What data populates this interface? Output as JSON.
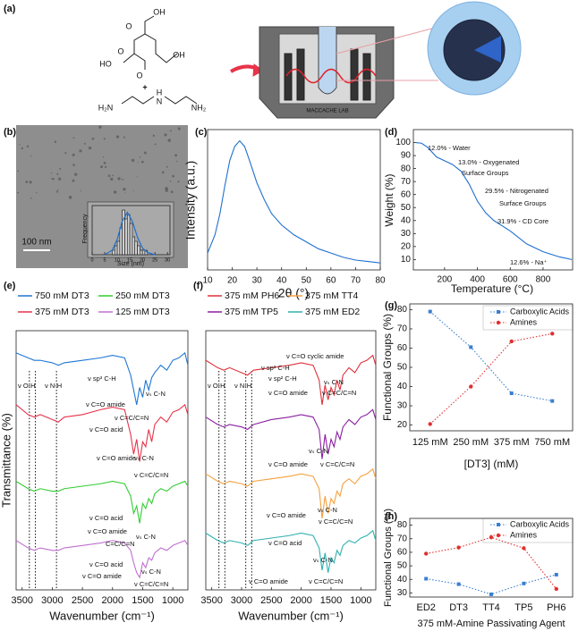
{
  "panel_labels": [
    "(a)",
    "(b)",
    "(c)",
    "(d)",
    "(e)",
    "(f)",
    "(g)",
    "(h)"
  ],
  "schematic": {
    "texts": [
      "HO",
      "O",
      "OH",
      "O",
      "OH",
      "O",
      "+",
      "H₂N",
      "N",
      "H",
      "NH₂",
      "MACCACHE LAB"
    ]
  },
  "chart_data": [
    {
      "type": "histogram",
      "scale_bar": "100 nm",
      "xlabel": "Size (nm)",
      "ylabel": "Frequency",
      "bins": [
        8,
        9,
        10,
        11,
        12,
        13,
        14,
        15,
        16,
        17,
        18,
        19,
        20,
        21,
        22
      ],
      "values": [
        1,
        2,
        3,
        6,
        10,
        8,
        9,
        7,
        4,
        3,
        2,
        1,
        1,
        1
      ],
      "color": "#cfcfcf",
      "fit": {
        "color": "#1f6fd0",
        "x": [
          5,
          8,
          10,
          12,
          14,
          16,
          18,
          20,
          22,
          25
        ],
        "values": [
          0,
          1,
          3.5,
          7.5,
          9.5,
          7.5,
          4,
          1.5,
          0.5,
          0
        ]
      },
      "xlim": [
        0,
        31
      ],
      "xticks": [
        0,
        5,
        10,
        15,
        20,
        25,
        30
      ],
      "ylim": [
        0,
        11
      ]
    },
    {
      "type": "line",
      "xlabel": "2θ (°)",
      "ylabel": "Intensity (a.u.)",
      "color": "#1f6fd0",
      "x": [
        10,
        13,
        15,
        17,
        19,
        21,
        23,
        25,
        27,
        30,
        33,
        36,
        40,
        45,
        50,
        55,
        60,
        65,
        70,
        75,
        80
      ],
      "values": [
        0.12,
        0.25,
        0.4,
        0.6,
        0.78,
        0.88,
        0.92,
        0.88,
        0.78,
        0.62,
        0.5,
        0.4,
        0.32,
        0.25,
        0.2,
        0.15,
        0.12,
        0.09,
        0.07,
        0.06,
        0.05
      ],
      "xlim": [
        10,
        80
      ],
      "xticks": [
        10,
        20,
        30,
        40,
        50,
        60,
        70,
        80
      ],
      "ylim": [
        0,
        1
      ]
    },
    {
      "type": "line",
      "xlabel": "Temperature (°C)",
      "ylabel": "Weight (%)",
      "color": "#1f6fd0",
      "x": [
        25,
        60,
        100,
        150,
        200,
        250,
        300,
        350,
        400,
        450,
        500,
        550,
        600,
        700,
        800,
        900,
        975
      ],
      "values": [
        100,
        99.5,
        96,
        89,
        86,
        83,
        78,
        68,
        55,
        46,
        40,
        36,
        32,
        22,
        16,
        12,
        10
      ],
      "xlim": [
        10,
        980
      ],
      "xticks": [
        200,
        400,
        600,
        800
      ],
      "ylim": [
        2,
        110
      ],
      "yticks": [
        10,
        20,
        30,
        40,
        50,
        60,
        70,
        80,
        90,
        100
      ],
      "annotations": [
        "12.0% - Water",
        "13.0% - Oxygenated",
        "Surface Groups",
        "29.5% - Nitrogenated",
        "Surface Groups",
        "31.9% - CD Core",
        "12.6% - Na⁺"
      ]
    },
    {
      "type": "line",
      "xlabel": "Wavenumber (cm⁻¹)",
      "ylabel": "Transmittance (%)",
      "x": [
        3600,
        3400,
        3300,
        3200,
        3000,
        2900,
        2800,
        2500,
        2200,
        2000,
        1800,
        1700,
        1650,
        1600,
        1550,
        1500,
        1450,
        1400,
        1350,
        1300,
        1200,
        1100,
        1000,
        900,
        800,
        750
      ],
      "series": [
        {
          "name": "750 mM DT3",
          "color": "#1f77d4",
          "values": [
            9.1,
            8.9,
            8.8,
            8.8,
            8.7,
            8.6,
            8.7,
            8.8,
            8.9,
            9.0,
            8.9,
            8.2,
            7.6,
            7.0,
            7.7,
            7.3,
            8.0,
            7.6,
            8.1,
            8.3,
            8.6,
            8.4,
            8.8,
            8.9,
            9.1,
            8.6
          ]
        },
        {
          "name": "250 mM DT3",
          "color": "#33cc33",
          "values": [
            3.9,
            3.6,
            3.5,
            3.6,
            3.5,
            3.5,
            3.6,
            3.7,
            3.8,
            3.9,
            3.8,
            3.3,
            2.6,
            2.9,
            2.2,
            3.0,
            2.8,
            3.2,
            3.0,
            3.4,
            3.6,
            3.5,
            3.7,
            3.8,
            3.9,
            3.7
          ]
        },
        {
          "name": "375 mM DT3",
          "color": "#e8334a",
          "values": [
            7.0,
            6.6,
            6.5,
            6.6,
            6.4,
            6.3,
            6.5,
            6.6,
            6.8,
            6.9,
            6.8,
            5.8,
            5.0,
            5.6,
            4.7,
            5.5,
            5.3,
            6.0,
            5.5,
            6.2,
            6.5,
            6.3,
            6.7,
            6.8,
            7.0,
            6.6
          ]
        },
        {
          "name": "125 mM DT3",
          "color": "#c070d0",
          "values": [
            1.5,
            1.2,
            1.1,
            1.2,
            1.1,
            1.1,
            1.2,
            1.3,
            1.4,
            1.5,
            1.4,
            1.1,
            0.6,
            0.2,
            0.0,
            0.6,
            0.4,
            0.8,
            0.7,
            1.0,
            1.2,
            1.1,
            1.3,
            1.4,
            1.5,
            1.3
          ]
        }
      ],
      "reference_lines": [
        3380,
        3280,
        2930
      ],
      "xlim": [
        3600,
        750
      ],
      "xticks": [
        3500,
        3000,
        2500,
        2000,
        1500,
        1000
      ],
      "ylim": [
        -0.5,
        10
      ],
      "annotations": [
        "ν O-H",
        "ν N-H",
        "ν sp³ C-H",
        "ν C=O amide",
        "νₛ C-N",
        "ν C=C/C=N",
        "ν C=O acid",
        "ν C=O amide",
        "νₛ C-N",
        "ν C=C/C=N",
        "ν C=O acid",
        "ν C=O amide",
        "νₛ C-N",
        "C=C/C=N",
        "ν C=O acid",
        "ν C=O amide",
        "νₛ C-N",
        "ν C=C/C=N"
      ]
    },
    {
      "type": "line",
      "xlabel": "Wavenumber (cm⁻¹)",
      "x": [
        3600,
        3400,
        3300,
        3200,
        3000,
        2900,
        2800,
        2500,
        2200,
        2000,
        1800,
        1700,
        1650,
        1600,
        1550,
        1500,
        1450,
        1400,
        1350,
        1300,
        1200,
        1100,
        1000,
        900,
        800,
        750
      ],
      "series": [
        {
          "name": "375 mM PH6",
          "color": "#e0303a",
          "values": [
            8.8,
            8.5,
            8.4,
            8.5,
            8.3,
            8.2,
            8.4,
            8.5,
            8.6,
            8.7,
            8.6,
            8.0,
            7.0,
            7.8,
            7.2,
            7.7,
            7.4,
            8.0,
            7.6,
            8.2,
            8.5,
            8.3,
            8.7,
            8.8,
            9.0,
            8.6
          ]
        },
        {
          "name": "375 mM TT4",
          "color": "#f5a040",
          "values": [
            4.2,
            3.9,
            3.8,
            3.9,
            3.8,
            3.7,
            3.9,
            4.0,
            4.1,
            4.2,
            4.1,
            3.6,
            2.4,
            3.3,
            2.6,
            3.2,
            3.0,
            3.5,
            3.3,
            3.8,
            4.0,
            3.8,
            4.1,
            4.2,
            4.4,
            4.0
          ]
        },
        {
          "name": "375 mM TP5",
          "color": "#8a1fa0",
          "values": [
            6.5,
            6.2,
            6.1,
            6.2,
            6.1,
            6.0,
            6.2,
            6.4,
            6.5,
            6.6,
            6.5,
            6.0,
            4.8,
            5.8,
            5.0,
            5.6,
            5.3,
            5.9,
            5.6,
            6.1,
            6.4,
            6.2,
            6.5,
            6.6,
            6.8,
            6.4
          ]
        },
        {
          "name": "375 mM ED2",
          "color": "#30b0b0",
          "values": [
            1.8,
            1.5,
            1.4,
            1.5,
            1.4,
            1.3,
            1.5,
            1.6,
            1.7,
            1.8,
            1.7,
            1.2,
            0.3,
            1.0,
            0.2,
            0.8,
            0.6,
            1.1,
            0.9,
            1.3,
            1.5,
            1.4,
            1.6,
            1.7,
            1.9,
            1.5
          ]
        }
      ],
      "reference_lines": [
        3380,
        3280,
        2930,
        2830
      ],
      "xlim": [
        3600,
        750
      ],
      "xticks": [
        3500,
        3000,
        2500,
        2000,
        1500,
        1000
      ],
      "ylim": [
        -0.5,
        10
      ],
      "annotations": [
        "ν O-H",
        "ν N-H",
        "ν sp³ C-H",
        "ν sp² C-H",
        "ν C=O cyclic amide",
        "ν C=O amide",
        "ν C=C/C=N",
        "νₛ C-N",
        "νₛ C-N",
        "ν C=O amide",
        "ν C=C/C=N",
        "ν C=O amide",
        "νₛ C-N",
        "ν C=C/C=N",
        "ν C=O acid",
        "νₛ C-N",
        "ν C=O amide",
        "ν C=C/C=N"
      ]
    },
    {
      "type": "line",
      "xlabel": "[DT3] (mM)",
      "ylabel": "Functional Groups (%)",
      "categories": [
        "125 mM",
        "250 mM",
        "375 mM",
        "750 mM"
      ],
      "series": [
        {
          "name": "Carboxylic Acids",
          "color": "#3a7fd0",
          "marker": "square",
          "linestyle": "dotted",
          "values": [
            79,
            60.5,
            36.5,
            32.5
          ]
        },
        {
          "name": "Amines",
          "color": "#e03030",
          "marker": "circle",
          "linestyle": "dotted",
          "values": [
            20.5,
            40,
            63.5,
            67.5
          ]
        }
      ],
      "ylim": [
        17,
        83
      ],
      "yticks": [
        20,
        30,
        40,
        50,
        60,
        70,
        80
      ]
    },
    {
      "type": "line",
      "xlabel": "375 mM-Amine Passivating Agent",
      "ylabel": "Functional Groups (%)",
      "categories": [
        "ED2",
        "DT3",
        "TT4",
        "TP5",
        "PH6"
      ],
      "series": [
        {
          "name": "Carboxylic Acids",
          "color": "#3a7fd0",
          "marker": "square",
          "linestyle": "dotted",
          "values": [
            40.5,
            36.5,
            29,
            37,
            43.5
          ]
        },
        {
          "name": "Amines",
          "color": "#e03030",
          "marker": "circle",
          "linestyle": "dotted",
          "values": [
            59,
            63.5,
            71,
            63,
            33
          ]
        }
      ],
      "ylim": [
        27,
        85
      ],
      "yticks": [
        30,
        40,
        50,
        60,
        70,
        80
      ]
    }
  ]
}
